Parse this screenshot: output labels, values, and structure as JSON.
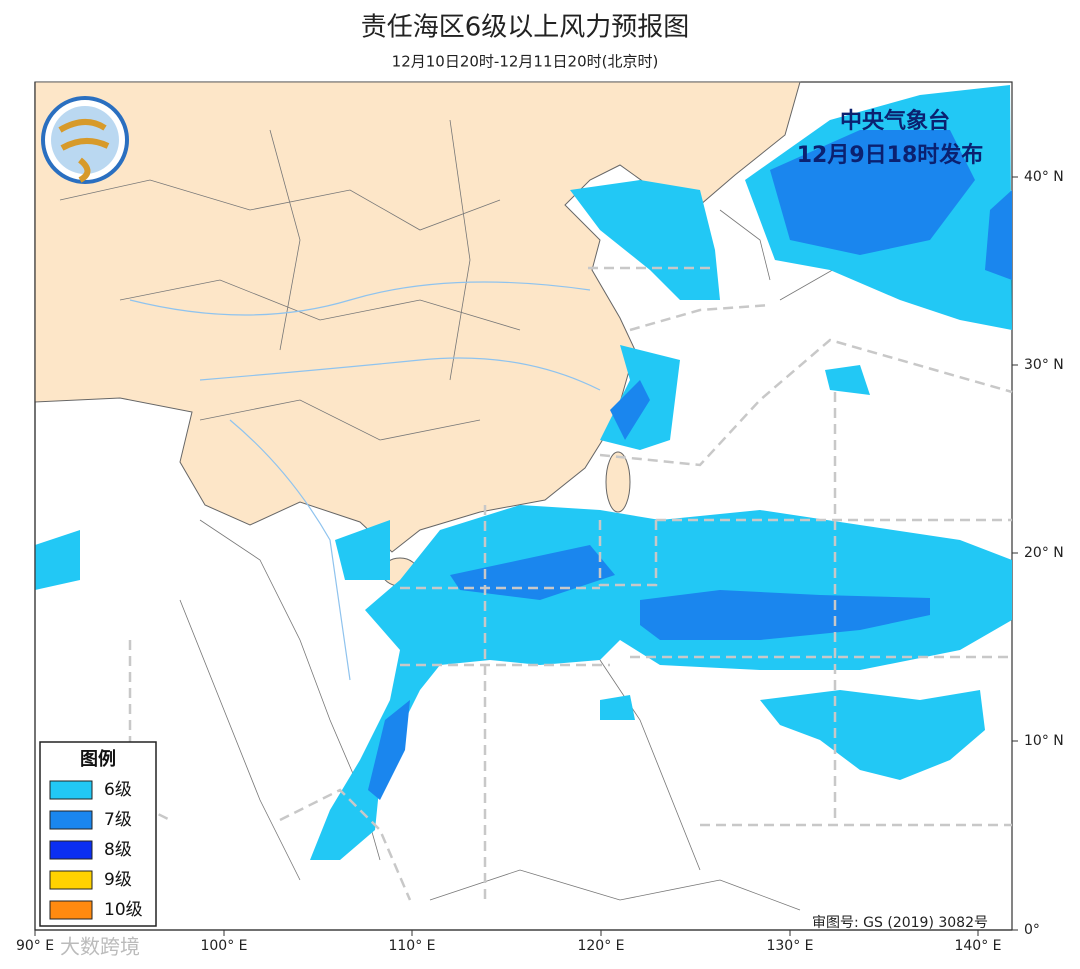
{
  "header": {
    "title": "责任海区6级以上风力预报图",
    "subtitle": "12月10日20时-12月11日20时(北京时)"
  },
  "issuer": {
    "name": "中央气象台",
    "time": "12月9日18时发布"
  },
  "legend": {
    "title": "图例",
    "items": [
      {
        "label": "6级",
        "color": "#22c8f5"
      },
      {
        "label": "7级",
        "color": "#1a86ee"
      },
      {
        "label": "8级",
        "color": "#0b2ff2"
      },
      {
        "label": "9级",
        "color": "#ffd200"
      },
      {
        "label": "10级",
        "color": "#ff8a10"
      }
    ]
  },
  "lat_labels": [
    "40° N",
    "30° N",
    "20° N",
    "10° N",
    "0°"
  ],
  "lon_labels": [
    "90° E",
    "100° E",
    "110° E",
    "120° E",
    "130° E",
    "140° E"
  ],
  "map_number": "审图号: GS (2019) 3082号",
  "watermark": "大数跨境"
}
